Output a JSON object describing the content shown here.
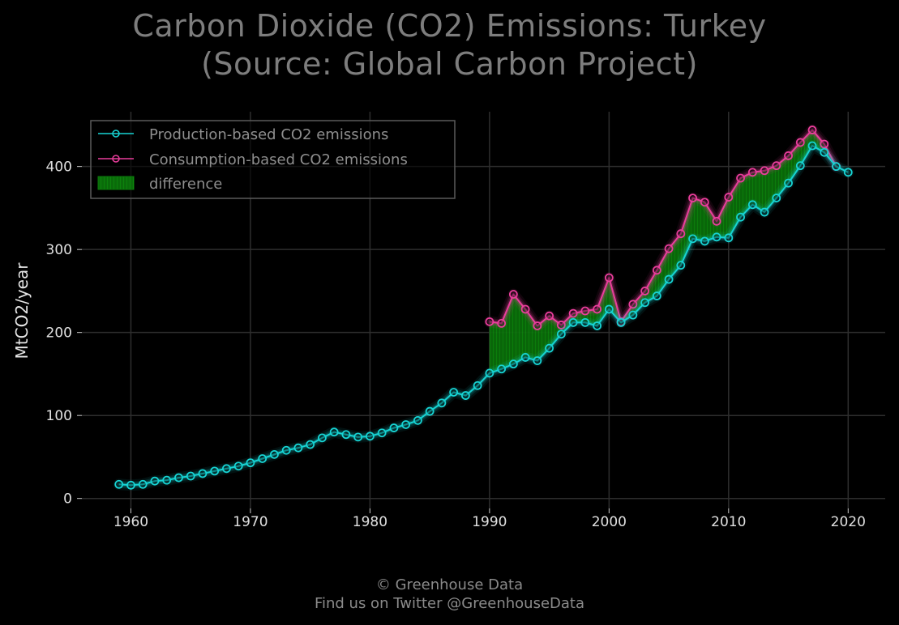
{
  "chart_data": {
    "type": "line",
    "title_line1": "Carbon Dioxide (CO2) Emissions: Turkey",
    "title_line2": "(Source: Global Carbon Project)",
    "xlabel": "",
    "ylabel": "MtCO2/year",
    "xlim": [
      1955.9,
      2023.1
    ],
    "ylim": [
      -12,
      466
    ],
    "x_ticks": [
      1960,
      1970,
      1980,
      1990,
      2000,
      2010,
      2020
    ],
    "y_ticks": [
      0,
      100,
      200,
      300,
      400
    ],
    "grid": true,
    "legend_position": "top-left",
    "legend_entries": [
      "Production-based CO2 emissions",
      "Consumption-based CO2 emissions",
      "difference"
    ],
    "colors": {
      "production": "#17d4d4",
      "consumption": "#ea3e9c",
      "difference": "#0b7a0b",
      "grid": "#2e2e2e",
      "background": "#000000"
    },
    "series": [
      {
        "name": "Production-based CO2 emissions",
        "x": [
          1959,
          1960,
          1961,
          1962,
          1963,
          1964,
          1965,
          1966,
          1967,
          1968,
          1969,
          1970,
          1971,
          1972,
          1973,
          1974,
          1975,
          1976,
          1977,
          1978,
          1979,
          1980,
          1981,
          1982,
          1983,
          1984,
          1985,
          1986,
          1987,
          1988,
          1989,
          1990,
          1991,
          1992,
          1993,
          1994,
          1995,
          1996,
          1997,
          1998,
          1999,
          2000,
          2001,
          2002,
          2003,
          2004,
          2005,
          2006,
          2007,
          2008,
          2009,
          2010,
          2011,
          2012,
          2013,
          2014,
          2015,
          2016,
          2017,
          2018,
          2019,
          2020
        ],
        "values": [
          17,
          16,
          17,
          21,
          22,
          25,
          27,
          30,
          33,
          36,
          39,
          43,
          48,
          53,
          58,
          61,
          65,
          73,
          80,
          77,
          74,
          75,
          79,
          85,
          89,
          94,
          105,
          115,
          128,
          124,
          136,
          151,
          156,
          162,
          170,
          166,
          181,
          198,
          212,
          212,
          208,
          228,
          212,
          221,
          236,
          244,
          264,
          281,
          313,
          310,
          315,
          314,
          339,
          354,
          345,
          362,
          380,
          401,
          425,
          417,
          400,
          393
        ]
      },
      {
        "name": "Consumption-based CO2 emissions",
        "x": [
          1990,
          1991,
          1992,
          1993,
          1994,
          1995,
          1996,
          1997,
          1998,
          1999,
          2000,
          2001,
          2002,
          2003,
          2004,
          2005,
          2006,
          2007,
          2008,
          2009,
          2010,
          2011,
          2012,
          2013,
          2014,
          2015,
          2016,
          2017,
          2018,
          2019
        ],
        "values": [
          213,
          211,
          246,
          228,
          208,
          220,
          209,
          223,
          226,
          228,
          266,
          213,
          234,
          250,
          275,
          301,
          319,
          362,
          357,
          334,
          363,
          386,
          393,
          395,
          401,
          413,
          429,
          444,
          427,
          400
        ]
      }
    ]
  },
  "footer": {
    "line1": "© Greenhouse Data",
    "line2": "Find us on Twitter @GreenhouseData"
  }
}
